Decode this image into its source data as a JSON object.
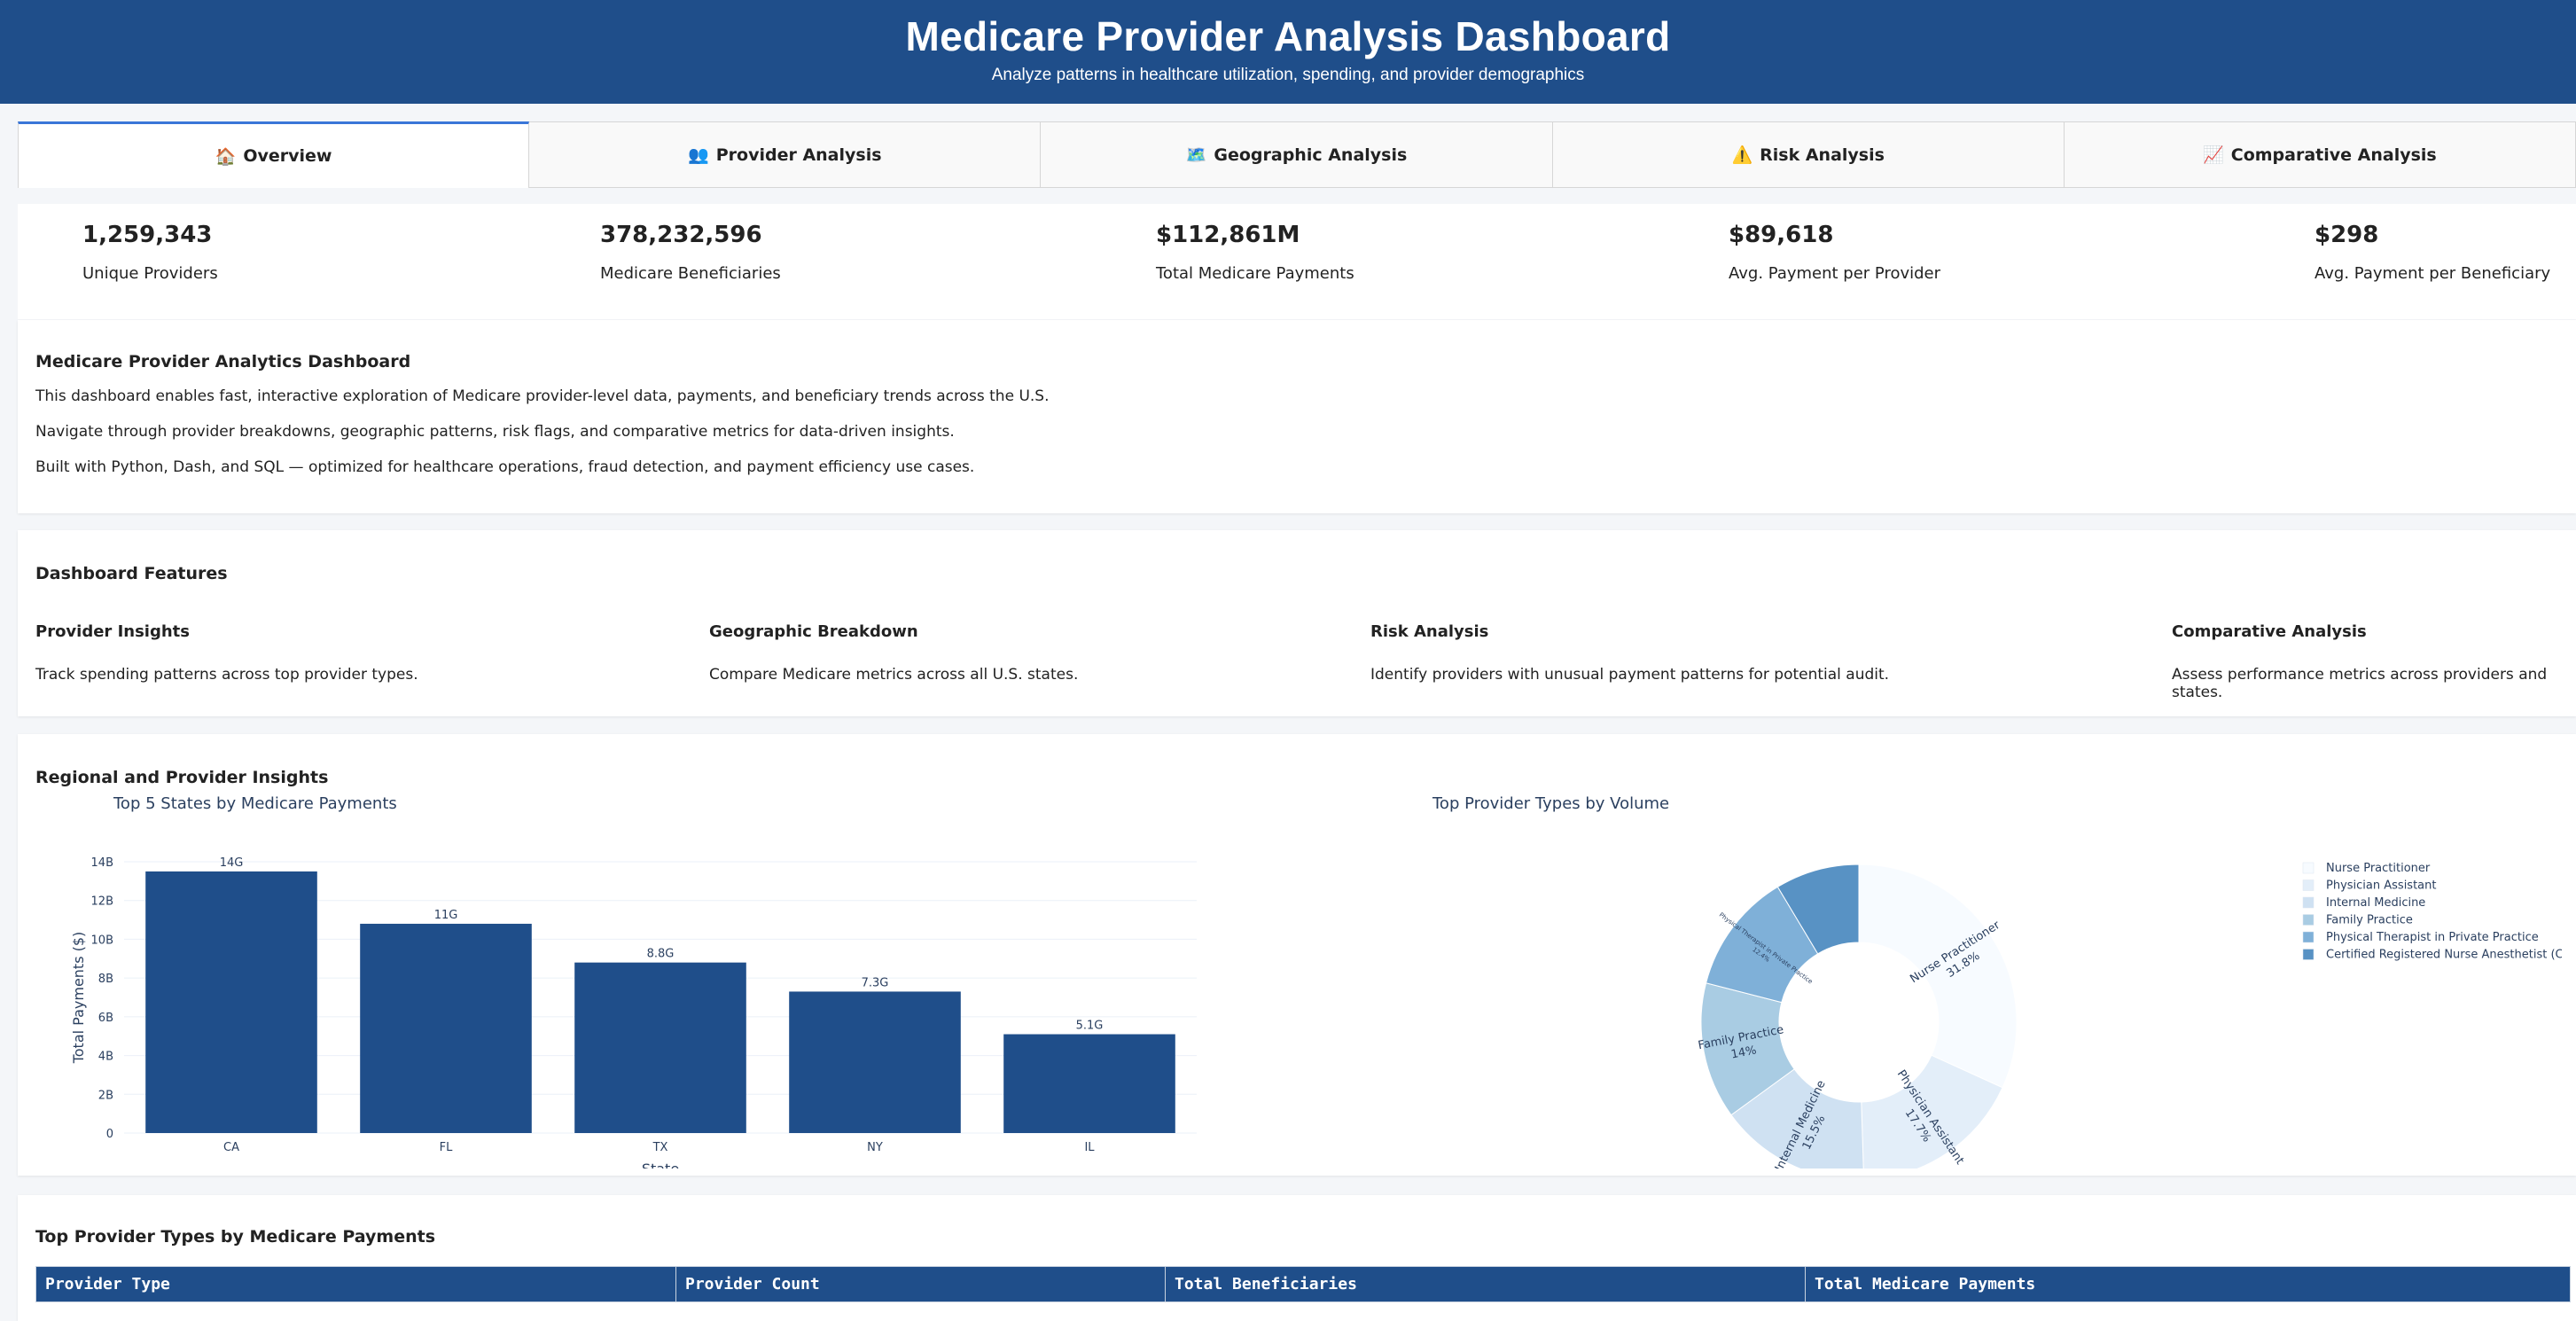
{
  "header": {
    "title": "Medicare Provider Analysis Dashboard",
    "subtitle": "Analyze patterns in healthcare utilization, spending, and provider demographics"
  },
  "tabs": [
    {
      "icon": "🏠",
      "label": "Overview",
      "active": true
    },
    {
      "icon": "👥",
      "label": "Provider Analysis",
      "active": false
    },
    {
      "icon": "🗺️",
      "label": "Geographic Analysis",
      "active": false
    },
    {
      "icon": "⚠️",
      "label": "Risk Analysis",
      "active": false
    },
    {
      "icon": "📈",
      "label": "Comparative Analysis",
      "active": false
    }
  ],
  "stats": [
    {
      "value": "1,259,343",
      "label": "Unique Providers"
    },
    {
      "value": "378,232,596",
      "label": "Medicare Beneficiaries"
    },
    {
      "value": "$112,861M",
      "label": "Total Medicare Payments"
    },
    {
      "value": "$89,618",
      "label": "Avg. Payment per Provider"
    },
    {
      "value": "$298",
      "label": "Avg. Payment per Beneficiary"
    }
  ],
  "intro": {
    "title": "Medicare Provider Analytics Dashboard",
    "lines": [
      "This dashboard enables fast, interactive exploration of Medicare provider-level data, payments, and beneficiary trends across the U.S.",
      "Navigate through provider breakdowns, geographic patterns, risk flags, and comparative metrics for data-driven insights.",
      "Built with Python, Dash, and SQL — optimized for healthcare operations, fraud detection, and payment efficiency use cases."
    ]
  },
  "features": {
    "title": "Dashboard Features",
    "items": [
      {
        "title": "Provider Insights",
        "desc": "Track spending patterns across top provider types."
      },
      {
        "title": "Geographic Breakdown",
        "desc": "Compare Medicare metrics across all U.S. states."
      },
      {
        "title": "Risk Analysis",
        "desc": "Identify providers with unusual payment patterns for potential audit."
      },
      {
        "title": "Comparative Analysis",
        "desc": "Assess performance metrics across providers and states."
      }
    ]
  },
  "insights": {
    "title": "Regional and Provider Insights"
  },
  "chart_data": [
    {
      "type": "bar",
      "title": "Top 5 States by Medicare Payments",
      "xlabel": "State",
      "ylabel": "Total Payments ($)",
      "categories": [
        "CA",
        "FL",
        "TX",
        "NY",
        "IL"
      ],
      "values": [
        13.5,
        10.8,
        8.8,
        7.3,
        5.1
      ],
      "value_labels": [
        "14G",
        "11G",
        "8.8G",
        "7.3G",
        "5.1G"
      ],
      "y_ticks": [
        "0",
        "2B",
        "4B",
        "6B",
        "8B",
        "10B",
        "12B",
        "14B"
      ],
      "ylim": [
        0,
        14
      ],
      "bar_color": "#1f4e8a",
      "grid": true
    },
    {
      "type": "pie",
      "title": "Top Provider Types by Volume",
      "hole": true,
      "legend": "right",
      "slices": [
        {
          "name": "Nurse Practitioner",
          "value": 31.8,
          "label": "31.8%",
          "color": "#f7fbff"
        },
        {
          "name": "Physician Assistant",
          "value": 17.7,
          "label": "17.7%",
          "color": "#e3eef9"
        },
        {
          "name": "Internal Medicine",
          "value": 15.5,
          "label": "15.5%",
          "color": "#cfe1f2"
        },
        {
          "name": "Family Practice",
          "value": 14.0,
          "label": "14%",
          "color": "#a9cce3"
        },
        {
          "name": "Physical Therapist in Private Practice",
          "value": 12.4,
          "label": "12.4%",
          "color": "#7fb0d8"
        },
        {
          "name": "Certified Registered Nurse Anesthetist (CRNA)",
          "value": 8.6,
          "label": "",
          "color": "#5892c4"
        }
      ]
    }
  ],
  "table": {
    "title": "Top Provider Types by Medicare Payments",
    "columns": [
      "Provider Type",
      "Provider Count",
      "Total Beneficiaries",
      "Total Medicare Payments"
    ]
  }
}
